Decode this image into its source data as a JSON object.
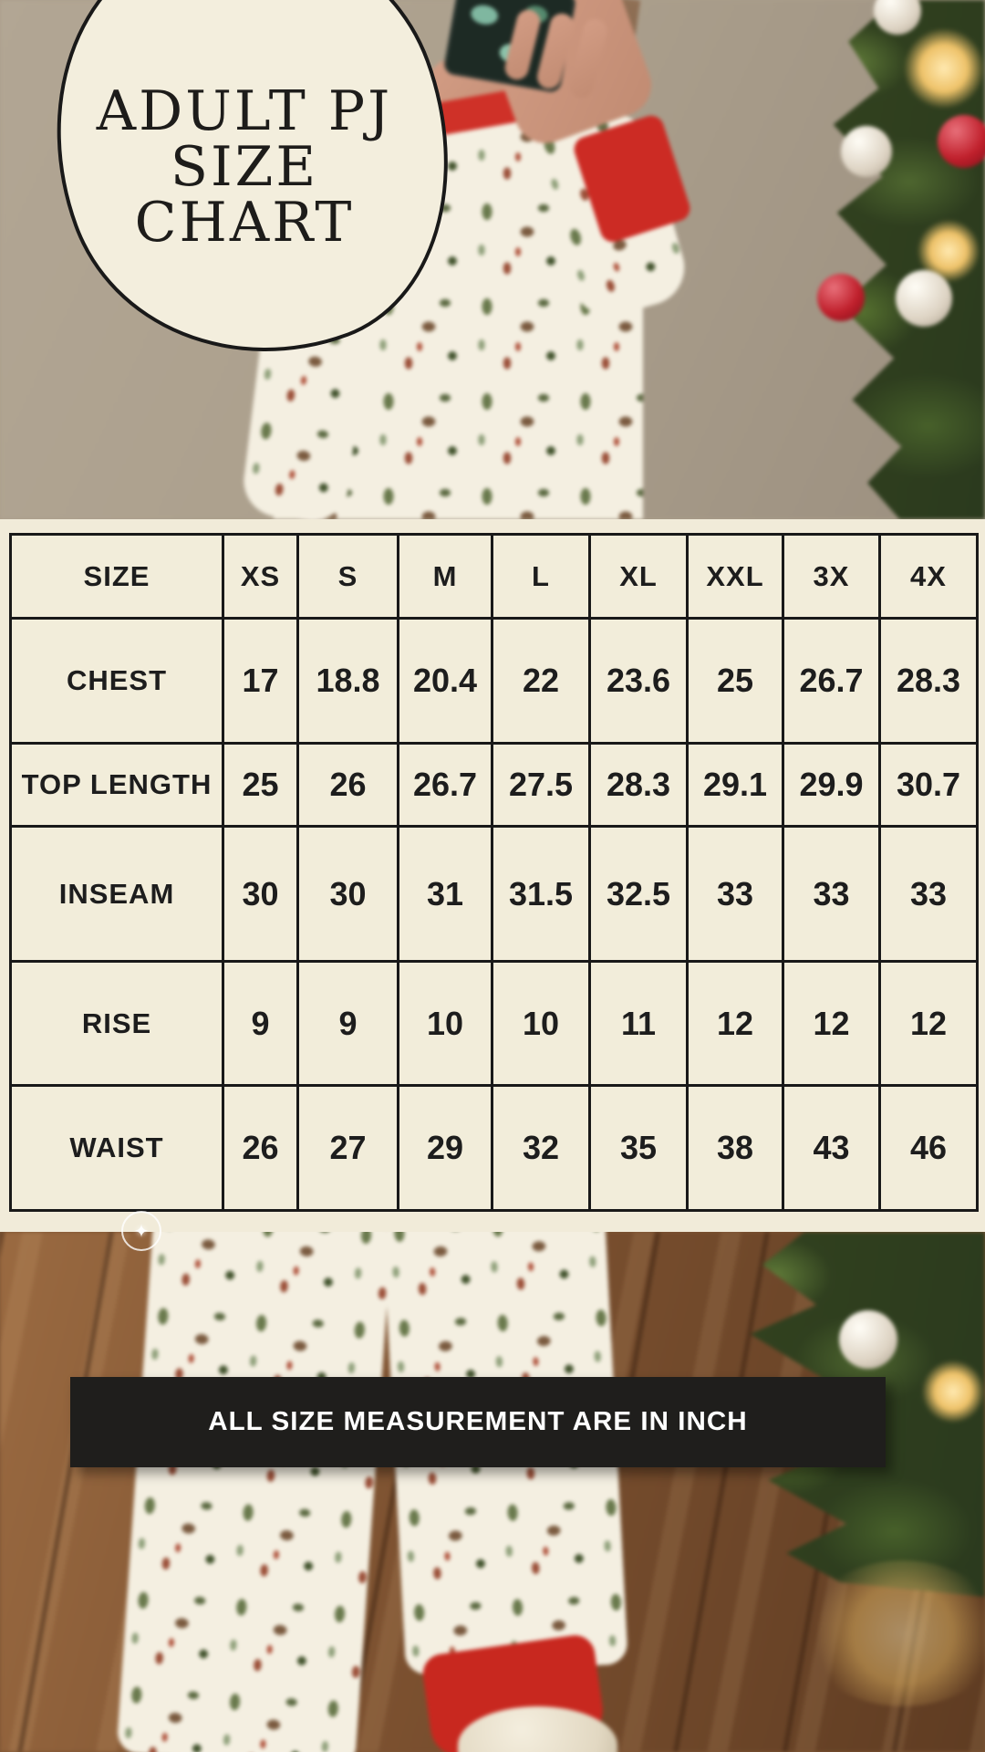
{
  "header_blob": {
    "line1": "ADULT PJ",
    "line2": "SIZE",
    "line3": "CHART"
  },
  "size_chart": {
    "columns": [
      "SIZE",
      "XS",
      "S",
      "M",
      "L",
      "XL",
      "XXL",
      "3X",
      "4X"
    ],
    "rows": [
      {
        "label": "CHEST",
        "values": [
          "17",
          "18.8",
          "20.4",
          "22",
          "23.6",
          "25",
          "26.7",
          "28.3"
        ]
      },
      {
        "label": "TOP LENGTH",
        "values": [
          "25",
          "26",
          "26.7",
          "27.5",
          "28.3",
          "29.1",
          "29.9",
          "30.7"
        ]
      },
      {
        "label": "INSEAM",
        "values": [
          "30",
          "30",
          "31",
          "31.5",
          "32.5",
          "33",
          "33",
          "33"
        ]
      },
      {
        "label": "RISE",
        "values": [
          "9",
          "9",
          "10",
          "10",
          "11",
          "12",
          "12",
          "12"
        ]
      },
      {
        "label": "WAIST",
        "values": [
          "26",
          "27",
          "29",
          "32",
          "35",
          "38",
          "43",
          "46"
        ]
      }
    ]
  },
  "banner": {
    "text": "ALL SIZE MEASUREMENT ARE IN INCH"
  },
  "icons": {
    "zoom_sparkle": "✦"
  },
  "colors": {
    "cream": "#f1ebd9",
    "line_black": "#191919",
    "banner_bg": "#1f1e1c",
    "banner_text": "#ffffff",
    "accent_red": "#c8281f",
    "tree_green": "#2b3a1e",
    "wall_tan": "#ab9e8c",
    "floor_brown": "#7c5434"
  }
}
